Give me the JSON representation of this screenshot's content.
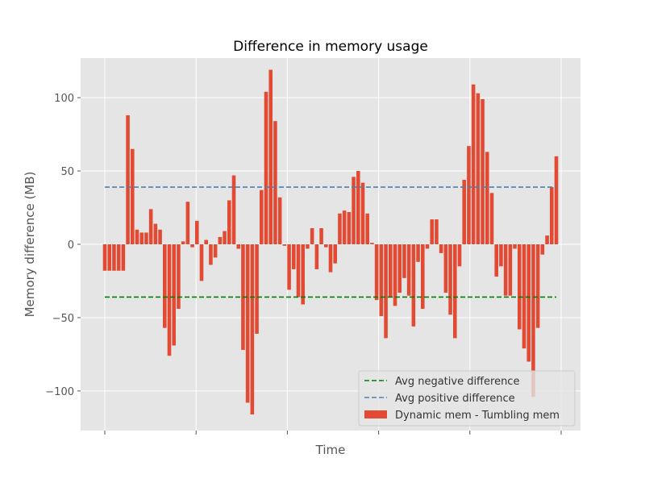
{
  "chart_data": {
    "type": "bar",
    "title": "Difference in memory usage",
    "xlabel": "Time",
    "ylabel": "Memory difference (MB)",
    "ylim": [
      -127,
      127
    ],
    "yticks": [
      -100,
      -50,
      0,
      50,
      100
    ],
    "ytick_labels": [
      "−100",
      "−50",
      "0",
      "50",
      "100"
    ],
    "xtick_labels": [
      "",
      "",
      "",
      "",
      "",
      ""
    ],
    "grid": true,
    "style": "ggplot",
    "legend_position": "lower-right",
    "bar_color": "#E24A33",
    "series": [
      {
        "name": "Dynamic mem - Tumbling mem",
        "values": [
          -18,
          -18,
          -18,
          -18,
          -18,
          88,
          65,
          10,
          8,
          8,
          24,
          14,
          10,
          -57,
          -76,
          -69,
          -44,
          2,
          29,
          -2,
          16,
          -25,
          3,
          -14,
          -9,
          5,
          9,
          30,
          47,
          -3,
          -72,
          -108,
          -116,
          -61,
          37,
          104,
          119,
          84,
          32,
          -1,
          -31,
          -17,
          -36,
          -41,
          -3,
          11,
          -17,
          11,
          -2,
          -19,
          -13,
          21,
          23,
          22,
          46,
          50,
          42,
          21,
          1,
          -38,
          -49,
          -64,
          -36,
          -42,
          -33,
          -23,
          -35,
          -56,
          -12,
          -44,
          -3,
          17,
          17,
          -6,
          -33,
          -48,
          -64,
          -15,
          44,
          67,
          109,
          103,
          99,
          63,
          35,
          -22,
          -15,
          -35,
          -35,
          -3,
          -58,
          -71,
          -80,
          -104,
          -57,
          -7,
          6,
          39,
          60
        ]
      },
      {
        "name": "Avg negative difference",
        "value": -36,
        "style": "dashed",
        "color": "#008000"
      },
      {
        "name": "Avg positive difference",
        "value": 39,
        "style": "dashed",
        "color": "#4682B4"
      }
    ]
  }
}
